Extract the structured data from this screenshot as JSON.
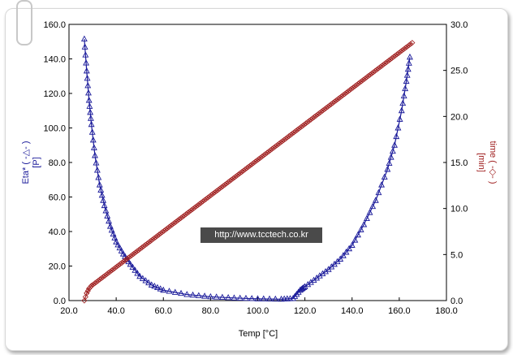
{
  "chart_data": {
    "type": "line",
    "x_axis": {
      "label": "Temp [°C]",
      "range": [
        20.0,
        180.0
      ],
      "ticks": [
        "20.0",
        "40.0",
        "60.0",
        "80.0",
        "100.0",
        "120.0",
        "140.0",
        "160.0",
        "180.0"
      ]
    },
    "y_axis_left": {
      "label": "Eta* ( -△- )\n[P]",
      "range": [
        0.0,
        160.0
      ],
      "ticks": [
        "0.0",
        "20.0",
        "40.0",
        "60.0",
        "80.0",
        "100.0",
        "120.0",
        "140.0",
        "160.0"
      ]
    },
    "y_axis_right": {
      "label": "time ( -◇- )\n[min]",
      "range": [
        0.0,
        30.0
      ],
      "ticks": [
        "0.0",
        "5.0",
        "10.0",
        "15.0",
        "20.0",
        "25.0",
        "30.0"
      ]
    },
    "series": [
      {
        "axis": "left",
        "marker": "triangle",
        "color": "#1a1a9a",
        "x": [
          26.5,
          27.5,
          28.5,
          29.5,
          31,
          33,
          35,
          37.5,
          40,
          43,
          46,
          50,
          55,
          60,
          70,
          80,
          90,
          100,
          110,
          115,
          118,
          120,
          125,
          130,
          135,
          140,
          145,
          150,
          155,
          158,
          161,
          163,
          164.5
        ],
        "y": [
          151.5,
          133,
          116,
          102,
          84,
          67,
          55,
          43,
          34,
          27,
          21,
          14,
          9,
          6,
          3.5,
          2.2,
          1.5,
          1.0,
          0.8,
          1.2,
          6,
          8,
          13,
          18,
          24,
          32,
          44,
          58,
          76,
          90,
          110,
          127,
          141
        ]
      },
      {
        "axis": "right",
        "marker": "diamond",
        "color": "#a02020",
        "x": [
          26.5,
          27.5,
          28.5,
          29.5,
          165.5
        ],
        "y": [
          0.0,
          0.8,
          1.3,
          1.6,
          28.0
        ]
      }
    ]
  },
  "watermark": "http://www.tcctech.co.kr"
}
